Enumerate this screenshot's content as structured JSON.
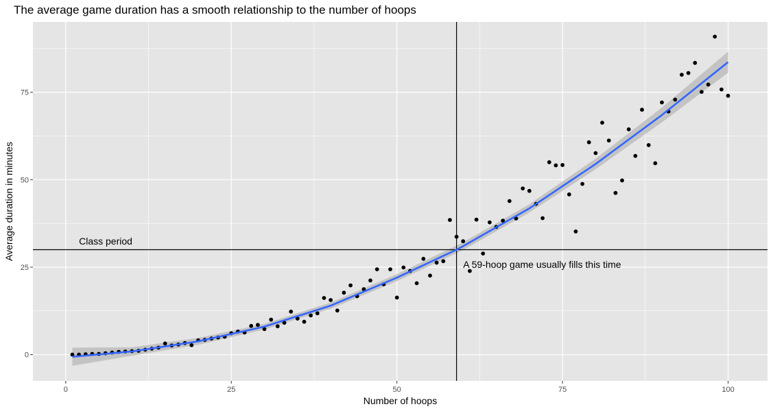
{
  "chart_data": {
    "type": "scatter",
    "title": "The average game duration has a smooth relationship to the number of hoops",
    "xlabel": "Number of hoops",
    "ylabel": "Average duration in minutes",
    "xlim": [
      -4.95,
      105.95
    ],
    "ylim": [
      -7.5,
      95.1
    ],
    "x_ticks": [
      0,
      25,
      50,
      75,
      100
    ],
    "y_ticks": [
      0,
      25,
      50,
      75
    ],
    "grid": true,
    "panel_background": "#e5e5e5",
    "points": [
      [
        1,
        0.0
      ],
      [
        2,
        0.0
      ],
      [
        3,
        0.1
      ],
      [
        4,
        0.2
      ],
      [
        5,
        0.2
      ],
      [
        6,
        0.4
      ],
      [
        7,
        0.6
      ],
      [
        8,
        0.8
      ],
      [
        9,
        0.9
      ],
      [
        10,
        1.0
      ],
      [
        11,
        1.1
      ],
      [
        12,
        1.4
      ],
      [
        13,
        1.7
      ],
      [
        14,
        2.0
      ],
      [
        15,
        3.2
      ],
      [
        16,
        2.6
      ],
      [
        17,
        2.9
      ],
      [
        18,
        3.3
      ],
      [
        19,
        2.7
      ],
      [
        20,
        4.1
      ],
      [
        21,
        4.2
      ],
      [
        22,
        4.6
      ],
      [
        23,
        4.9
      ],
      [
        24,
        5.1
      ],
      [
        25,
        6.1
      ],
      [
        26,
        6.6
      ],
      [
        27,
        6.3
      ],
      [
        28,
        8.2
      ],
      [
        29,
        8.5
      ],
      [
        30,
        7.3
      ],
      [
        31,
        10.0
      ],
      [
        32,
        8.1
      ],
      [
        33,
        9.1
      ],
      [
        34,
        12.3
      ],
      [
        35,
        10.3
      ],
      [
        36,
        9.4
      ],
      [
        37,
        11.2
      ],
      [
        38,
        11.8
      ],
      [
        39,
        16.2
      ],
      [
        40,
        15.6
      ],
      [
        41,
        12.6
      ],
      [
        42,
        17.7
      ],
      [
        43,
        19.8
      ],
      [
        44,
        16.7
      ],
      [
        45,
        18.7
      ],
      [
        46,
        21.2
      ],
      [
        47,
        24.4
      ],
      [
        48,
        20.1
      ],
      [
        49,
        24.4
      ],
      [
        50,
        16.3
      ],
      [
        51,
        24.9
      ],
      [
        52,
        23.9
      ],
      [
        53,
        20.4
      ],
      [
        54,
        27.4
      ],
      [
        55,
        22.6
      ],
      [
        56,
        26.3
      ],
      [
        57,
        26.7
      ],
      [
        58,
        38.5
      ],
      [
        59,
        33.7
      ],
      [
        60,
        32.4
      ],
      [
        61,
        23.9
      ],
      [
        62,
        38.6
      ],
      [
        63,
        28.9
      ],
      [
        64,
        37.8
      ],
      [
        65,
        36.5
      ],
      [
        66,
        38.3
      ],
      [
        67,
        43.9
      ],
      [
        68,
        38.9
      ],
      [
        69,
        47.5
      ],
      [
        70,
        46.8
      ],
      [
        71,
        43.1
      ],
      [
        72,
        39.0
      ],
      [
        73,
        55.0
      ],
      [
        74,
        54.1
      ],
      [
        75,
        54.2
      ],
      [
        76,
        45.8
      ],
      [
        77,
        35.2
      ],
      [
        78,
        48.8
      ],
      [
        79,
        60.7
      ],
      [
        80,
        57.6
      ],
      [
        81,
        66.3
      ],
      [
        82,
        61.2
      ],
      [
        83,
        46.2
      ],
      [
        84,
        49.8
      ],
      [
        85,
        64.4
      ],
      [
        86,
        56.8
      ],
      [
        87,
        70.0
      ],
      [
        88,
        59.9
      ],
      [
        89,
        54.7
      ],
      [
        90,
        72.1
      ],
      [
        91,
        69.5
      ],
      [
        92,
        72.9
      ],
      [
        93,
        80.0
      ],
      [
        94,
        80.5
      ],
      [
        95,
        83.4
      ],
      [
        96,
        75.1
      ],
      [
        97,
        77.2
      ],
      [
        98,
        90.9
      ],
      [
        99,
        75.8
      ],
      [
        100,
        74.0
      ]
    ],
    "smooth_line": [
      [
        1,
        -0.6
      ],
      [
        10,
        0.9
      ],
      [
        20,
        3.8
      ],
      [
        30,
        8.0
      ],
      [
        40,
        14.0
      ],
      [
        50,
        22.0
      ],
      [
        59,
        30.0
      ],
      [
        60,
        31.0
      ],
      [
        70,
        41.8
      ],
      [
        80,
        54.5
      ],
      [
        90,
        68.5
      ],
      [
        100,
        83.6
      ]
    ],
    "smooth_band": [
      [
        1,
        -3.2,
        2.0
      ],
      [
        10,
        -0.3,
        2.1
      ],
      [
        20,
        2.8,
        4.8
      ],
      [
        30,
        7.2,
        8.8
      ],
      [
        40,
        13.1,
        14.9
      ],
      [
        50,
        21.0,
        23.0
      ],
      [
        60,
        29.9,
        32.1
      ],
      [
        70,
        40.6,
        43.0
      ],
      [
        80,
        53.0,
        56.0
      ],
      [
        90,
        66.4,
        70.6
      ],
      [
        100,
        80.6,
        86.6
      ]
    ],
    "vline_x": 59,
    "hline_y": 30,
    "annotations": [
      {
        "text": "Class period",
        "x": 2,
        "y": 31.5
      },
      {
        "text": "A 59-hoop game usually fills this time",
        "x": 60,
        "y": 24.8
      }
    ],
    "colors": {
      "points": "#000000",
      "smooth": "#3366ff",
      "band": "#bdbdbd",
      "grid": "#ffffff",
      "refline": "#000000"
    }
  }
}
